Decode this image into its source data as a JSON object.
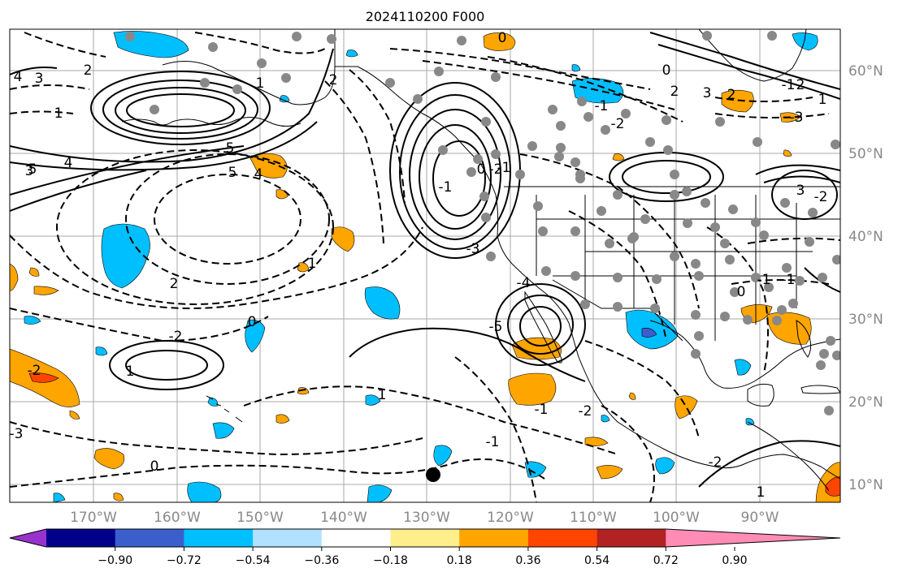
{
  "title": "2024110200 F000",
  "map": {
    "lon_labels": [
      "170°W",
      "160°W",
      "150°W",
      "140°W",
      "130°W",
      "120°W",
      "110°W",
      "100°W",
      "90°W"
    ],
    "lat_labels": [
      "60°N",
      "50°N",
      "40°N",
      "30°N",
      "20°N",
      "10°N"
    ],
    "contour_labels": [
      "4",
      "3",
      "2",
      "1",
      "0",
      "-5",
      "5",
      "4",
      "3",
      "5",
      "4",
      "2",
      "1",
      "0",
      "-1",
      "-2",
      "-3",
      "-4",
      "-5",
      "-2",
      "1",
      "0",
      "1",
      "2",
      "-1",
      "2",
      "3",
      "2",
      "-2",
      "3",
      "2",
      "1",
      "-1",
      "-3",
      "1",
      "0",
      "-1",
      "-2",
      "-1",
      "-2",
      "-3",
      "-2",
      "1",
      "0",
      "-1",
      "-1",
      "-2",
      "-1",
      "0"
    ],
    "colors": {
      "land_line": "#000000",
      "grid": "#aaaaaa"
    }
  },
  "colorbar": {
    "ticks": [
      "−0.90",
      "−0.72",
      "−0.54",
      "−0.36",
      "−0.18",
      "0.18",
      "0.36",
      "0.54",
      "0.72",
      "0.90"
    ],
    "colors": [
      "#9932cc",
      "#00008b",
      "#3a5fcd",
      "#00bfff",
      "#b0e2ff",
      "#ffffff",
      "#ffee8c",
      "#ffa500",
      "#ff4500",
      "#b22222",
      "#ff8cb4"
    ]
  }
}
